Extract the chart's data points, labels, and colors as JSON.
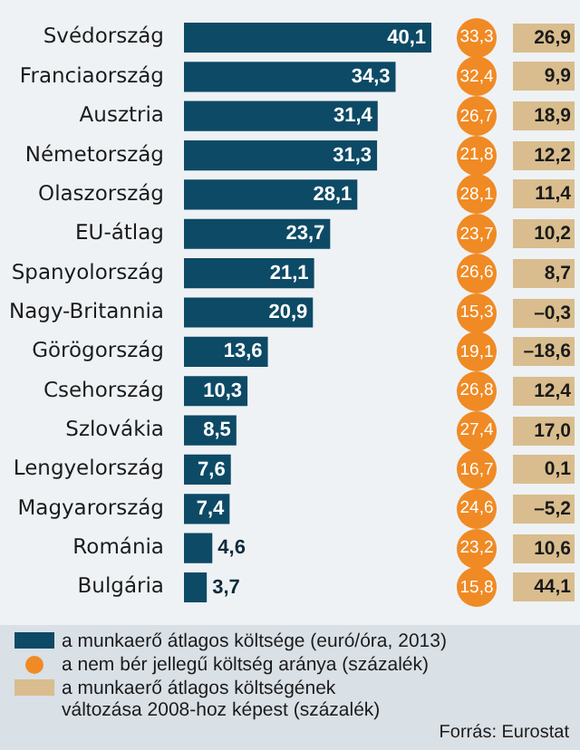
{
  "chart_data": [
    {
      "type": "bar",
      "orientation": "horizontal",
      "legend": "bottom",
      "categories": [
        "Svédország",
        "Franciaország",
        "Ausztria",
        "Németország",
        "Olaszország",
        "EU-átlag",
        "Spanyolország",
        "Nagy-Britannia",
        "Görögország",
        "Csehország",
        "Szlovákia",
        "Lengyelország",
        "Magyarország",
        "Románia",
        "Bulgária"
      ],
      "series": [
        {
          "name": "a munkaerő átlagos költsége (euró/óra, 2013)",
          "color": "#0d4a66",
          "values": [
            40.1,
            34.3,
            31.4,
            31.3,
            28.1,
            23.7,
            21.1,
            20.9,
            13.6,
            10.3,
            8.5,
            7.6,
            7.4,
            4.6,
            3.7
          ],
          "value_labels": [
            "40,1",
            "34,3",
            "31,4",
            "31,3",
            "28,1",
            "23,7",
            "21,1",
            "20,9",
            "13,6",
            "10,3",
            "8,5",
            "7,6",
            "7,4",
            "4,6",
            "3,7"
          ]
        }
      ],
      "annotations": [
        "Forrás: Eurostat"
      ]
    },
    {
      "type": "other",
      "legend": "bottom",
      "categories": [
        null,
        null,
        null,
        null,
        null,
        null,
        null,
        null,
        null,
        null,
        null,
        null,
        null,
        null,
        null
      ],
      "series": [
        {
          "name": "a nem bér jellegű költség aránya (százalék)",
          "color": "#f08a24",
          "values": [
            33.3,
            32.4,
            26.7,
            21.8,
            28.1,
            23.7,
            26.6,
            15.3,
            19.1,
            26.8,
            27.4,
            16.7,
            24.6,
            23.2,
            15.8
          ],
          "value_labels": [
            "33,3",
            "32,4",
            "26,7",
            "21,8",
            "28,1",
            "23,7",
            "26,6",
            "15,3",
            "19,1",
            "26,8",
            "27,4",
            "16,7",
            "24,6",
            "23,2",
            "15,8"
          ]
        }
      ]
    },
    {
      "type": "other",
      "legend": "bottom",
      "categories": [
        null,
        null,
        null,
        null,
        null,
        null,
        null,
        null,
        null,
        null,
        null,
        null,
        null,
        null,
        null
      ],
      "series": [
        {
          "name": "a munkaerő átlagos költségének változása 2008-hoz képest (százalék)",
          "color": "#d9bd8e",
          "values": [
            26.9,
            9.9,
            18.9,
            12.2,
            11.4,
            10.2,
            8.7,
            -0.3,
            -18.6,
            12.4,
            17.0,
            0.1,
            -5.2,
            10.6,
            44.1
          ],
          "value_labels": [
            "26,9",
            "9,9",
            "18,9",
            "12,2",
            "11,4",
            "10,2",
            "8,7",
            "–0,3",
            "–18,6",
            "12,4",
            "17,0",
            "0,1",
            "–5,2",
            "10,6",
            "44,1"
          ]
        }
      ]
    }
  ]
}
